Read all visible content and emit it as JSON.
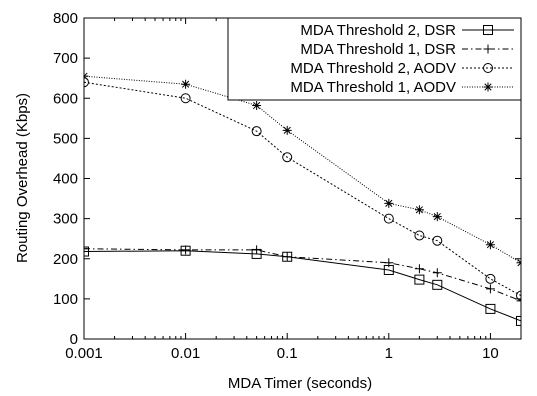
{
  "chart_data": {
    "type": "line",
    "xscale": "log",
    "xlim": [
      0.001,
      20
    ],
    "ylim": [
      0,
      800
    ],
    "xticks": [
      0.001,
      0.01,
      0.1,
      1,
      10
    ],
    "xtick_labels": [
      "0.001",
      "0.01",
      "0.1",
      "1",
      "10"
    ],
    "yticks": [
      0,
      100,
      200,
      300,
      400,
      500,
      600,
      700,
      800
    ],
    "ytick_labels": [
      "0",
      "100",
      "200",
      "300",
      "400",
      "500",
      "600",
      "700",
      "800"
    ],
    "xlabel": "MDA Timer (seconds)",
    "ylabel": "Routing Overhead (Kbps)",
    "grid": false,
    "legend_position": "top-right",
    "series": [
      {
        "name": "MDA Threshold 2, DSR",
        "marker": "square",
        "dash": "solid",
        "x": [
          0.001,
          0.01,
          0.05,
          0.1,
          1,
          2,
          3,
          10,
          20
        ],
        "y": [
          218,
          220,
          212,
          205,
          172,
          148,
          135,
          75,
          45
        ]
      },
      {
        "name": "MDA Threshold 1, DSR",
        "marker": "plus",
        "dash": "dashdot",
        "x": [
          0.001,
          0.01,
          0.05,
          0.1,
          1,
          2,
          3,
          10,
          20
        ],
        "y": [
          225,
          222,
          222,
          205,
          190,
          175,
          165,
          125,
          95
        ]
      },
      {
        "name": "MDA Threshold 2, AODV",
        "marker": "circle",
        "dash": "dotted",
        "x": [
          0.001,
          0.01,
          0.05,
          0.1,
          1,
          2,
          3,
          10,
          20
        ],
        "y": [
          640,
          600,
          518,
          453,
          300,
          258,
          245,
          150,
          108
        ]
      },
      {
        "name": "MDA Threshold 1, AODV",
        "marker": "star",
        "dash": "finedot",
        "x": [
          0.001,
          0.01,
          0.05,
          0.1,
          1,
          2,
          3,
          10,
          20
        ],
        "y": [
          655,
          635,
          582,
          520,
          338,
          322,
          305,
          235,
          190
        ]
      }
    ]
  }
}
